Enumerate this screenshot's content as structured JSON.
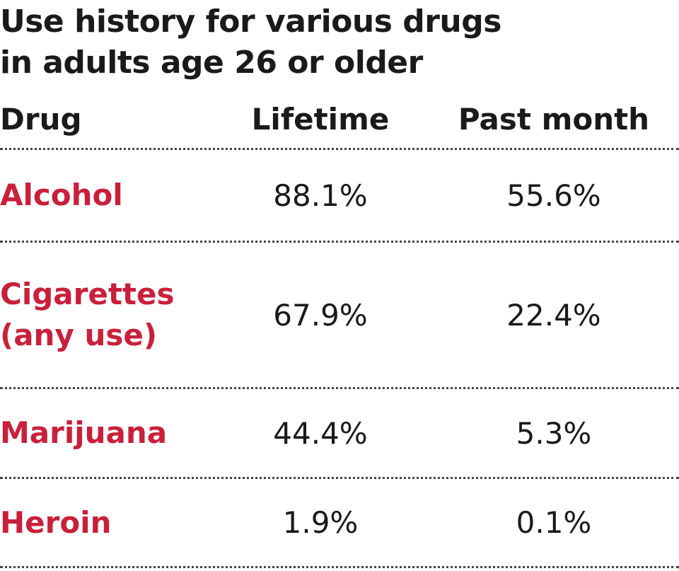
{
  "title": [
    "Use history for various drugs",
    "in adults age 26 or older"
  ],
  "table": {
    "header": [
      "Drug",
      "Lifetime",
      "Past month"
    ],
    "rows": [
      [
        "Alcohol",
        "88.1%",
        "55.6%"
      ],
      [
        "Cigarettes (any use)",
        "67.9%",
        "22.4%"
      ],
      [
        "Marijuana",
        "44.4%",
        "5.3%"
      ],
      [
        "Heroin",
        "1.9%",
        "0.1%"
      ]
    ]
  }
}
